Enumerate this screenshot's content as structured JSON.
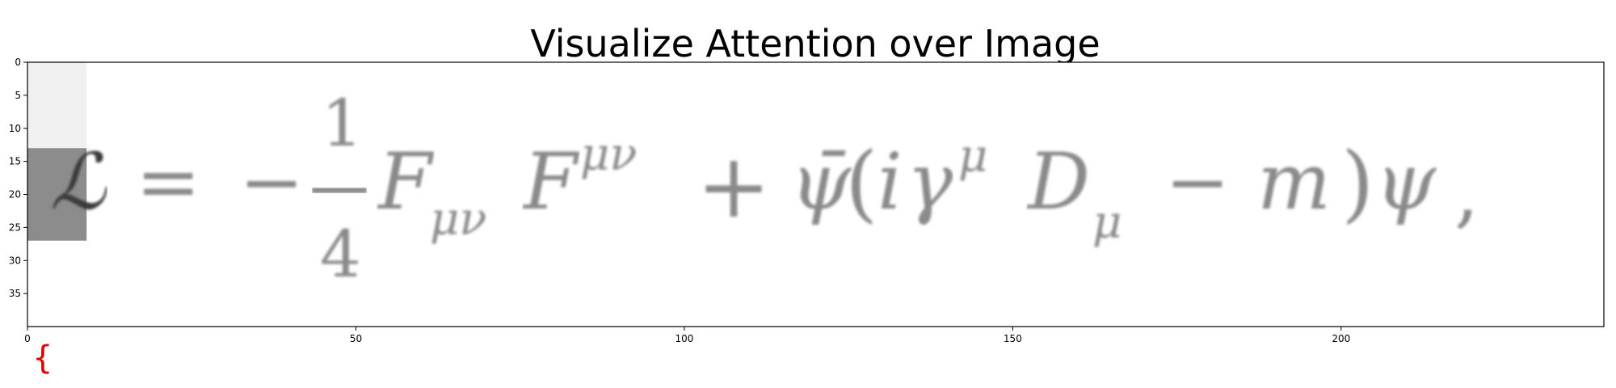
{
  "figure": {
    "title": "Visualize Attention over Image",
    "formula_text": "ℒ = −¼FμνFμν + ψ̄(iγμDμ − m)ψ ,",
    "formula_parts": {
      "lagrangian": "ℒ",
      "equals": "=",
      "minus": "−",
      "frac_num": "1",
      "frac_den": "4",
      "f_lower": "F",
      "f_lower_sub": "μν",
      "f_upper": "F",
      "f_upper_sup": "μν",
      "plus": "+",
      "psi_bar": "ψ̄",
      "open_paren": "(",
      "i": "i",
      "gamma": "γ",
      "gamma_sup": "μ",
      "d": "D",
      "d_sub": "μ",
      "minus2": "−",
      "m": "m",
      "close_paren": ")",
      "psi": "ψ",
      "comma": ","
    },
    "predicted_token": "{",
    "token_color": "#e00000",
    "attention_color": "#000000"
  },
  "chart_data": {
    "type": "heatmap",
    "title": "Visualize Attention over Image",
    "xlabel": "",
    "ylabel": "",
    "xlim": [
      0,
      240
    ],
    "ylim": [
      40,
      0
    ],
    "x_ticks": [
      0,
      50,
      100,
      150,
      200
    ],
    "y_ticks": [
      0,
      5,
      10,
      15,
      20,
      25,
      30,
      35
    ],
    "grid": false,
    "attention_cells": [
      {
        "x0": 0,
        "x1": 9,
        "y0": 0,
        "y1": 13,
        "weight": 0.06
      },
      {
        "x0": 0,
        "x1": 9,
        "y0": 13,
        "y1": 27,
        "weight": 0.45
      }
    ]
  }
}
